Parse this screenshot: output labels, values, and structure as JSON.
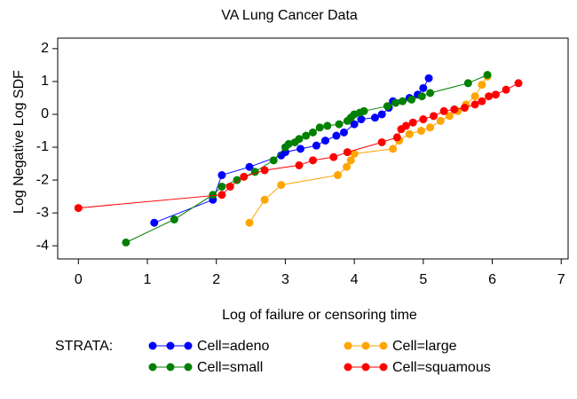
{
  "chart_data": {
    "type": "line",
    "title": "VA Lung Cancer Data",
    "x_label": "Log of failure or censoring time",
    "y_label": "Log Negative Log SDF",
    "legend_title": "STRATA:",
    "xlim": [
      -0.3,
      7.1
    ],
    "xticks": [
      0,
      1,
      2,
      3,
      4,
      5,
      6,
      7
    ],
    "ylim": [
      -4.4,
      2.32
    ],
    "yticks": [
      -4,
      -3,
      -2,
      -1,
      0,
      1,
      2
    ],
    "series": [
      {
        "name": "Cell=adeno",
        "color": "#0000ff",
        "x": [
          1.1,
          1.95,
          2.08,
          2.48,
          2.94,
          3.0,
          3.22,
          3.45,
          3.58,
          3.74,
          3.85,
          4.0,
          4.1,
          4.3,
          4.4,
          4.5,
          4.56,
          4.8,
          4.92,
          5.0,
          5.08
        ],
        "values": [
          -3.3,
          -2.6,
          -1.85,
          -1.6,
          -1.25,
          -1.15,
          -1.05,
          -0.95,
          -0.8,
          -0.65,
          -0.55,
          -0.3,
          -0.15,
          -0.1,
          0.0,
          0.2,
          0.4,
          0.5,
          0.6,
          0.8,
          1.1
        ]
      },
      {
        "name": "Cell=large",
        "color": "#ffa500",
        "x": [
          2.48,
          2.7,
          2.94,
          3.76,
          3.89,
          3.95,
          4.0,
          4.56,
          4.65,
          4.8,
          4.97,
          5.1,
          5.25,
          5.38,
          5.5,
          5.62,
          5.75,
          5.85,
          5.93
        ],
        "values": [
          -3.3,
          -2.6,
          -2.15,
          -1.85,
          -1.6,
          -1.4,
          -1.2,
          -1.05,
          -0.8,
          -0.6,
          -0.5,
          -0.4,
          -0.2,
          -0.05,
          0.1,
          0.3,
          0.55,
          0.9,
          1.15
        ]
      },
      {
        "name": "Cell=small",
        "color": "#008000",
        "x": [
          0.69,
          1.39,
          1.95,
          2.08,
          2.3,
          2.56,
          2.83,
          3.0,
          3.05,
          3.14,
          3.2,
          3.3,
          3.4,
          3.5,
          3.61,
          3.78,
          3.9,
          3.95,
          4.0,
          4.08,
          4.14,
          4.48,
          4.6,
          4.7,
          4.83,
          4.98,
          5.1,
          5.65,
          5.93
        ],
        "values": [
          -3.9,
          -3.2,
          -2.45,
          -2.2,
          -2.0,
          -1.75,
          -1.4,
          -1.0,
          -0.9,
          -0.85,
          -0.75,
          -0.65,
          -0.55,
          -0.4,
          -0.35,
          -0.3,
          -0.2,
          -0.1,
          0.0,
          0.05,
          0.1,
          0.25,
          0.35,
          0.4,
          0.45,
          0.55,
          0.65,
          0.95,
          1.2
        ]
      },
      {
        "name": "Cell=squamous",
        "color": "#ff0000",
        "x": [
          0,
          2.08,
          2.2,
          2.4,
          2.7,
          3.2,
          3.4,
          3.7,
          3.9,
          4.4,
          4.62,
          4.68,
          4.75,
          4.85,
          5.0,
          5.15,
          5.3,
          5.45,
          5.6,
          5.75,
          5.85,
          5.95,
          6.05,
          6.2,
          6.38
        ],
        "values": [
          -2.85,
          -2.45,
          -2.2,
          -1.9,
          -1.7,
          -1.55,
          -1.4,
          -1.3,
          -1.15,
          -0.85,
          -0.7,
          -0.45,
          -0.35,
          -0.25,
          -0.15,
          -0.05,
          0.1,
          0.15,
          0.2,
          0.3,
          0.4,
          0.55,
          0.6,
          0.75,
          0.95
        ]
      }
    ]
  }
}
